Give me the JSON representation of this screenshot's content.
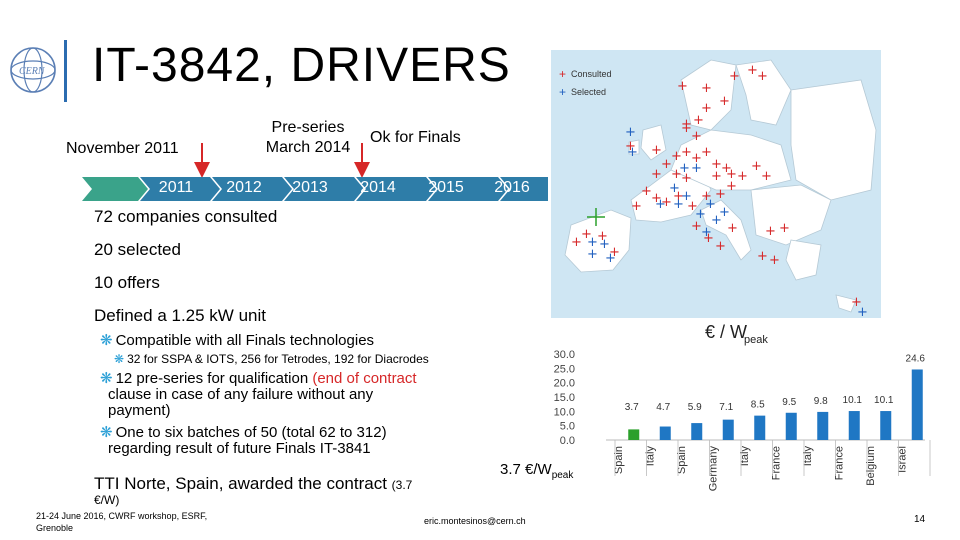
{
  "title": "IT-3842, DRIVERS",
  "timeline": {
    "milestone_left": "November 2011",
    "milestone_mid_line1": "Pre-series",
    "milestone_mid_line2": "March 2014",
    "milestone_right": "Ok for Finals",
    "years": [
      "2011",
      "2012",
      "2013",
      "2014",
      "2015",
      "2016"
    ],
    "band_color": "#2e7da8",
    "start_color": "#3aa38a"
  },
  "stats": {
    "consulted": "72 companies consulted",
    "selected": "20 selected",
    "offers": "10 offers",
    "unit": "Defined a 1.25 kW unit"
  },
  "bullets": {
    "b1": "Compatible with all Finals technologies",
    "b1_sub": "32 for SSPA & IOTS, 256 for Tetrodes, 192 for Diacrodes",
    "b2_a": "12 pre-series for qualification ",
    "b2_b": "(end of contract",
    "b2_line2": "clause in case of any failure without any",
    "b2_line3": "payment)",
    "b3_line1": "One to six batches of 50 (total 62 to 312)",
    "b3_line2": "regarding result of future Finals IT-3841",
    "award_main": "TTI Norte, Spain, awarded the contract ",
    "award_small": "(3.7",
    "award_line2": "€/W)"
  },
  "map": {
    "legend_consulted": "Consulted",
    "legend_selected": "Selected",
    "consulted_color": "#d62728",
    "selected_color": "#1f5fbf"
  },
  "chart_data": {
    "type": "bar",
    "title": "€ / W",
    "title_sub": "peak",
    "categories": [
      "Spain",
      "Italy",
      "Spain",
      "Germany",
      "Italy",
      "France",
      "Italy",
      "France",
      "Belgium",
      "Israel"
    ],
    "values": [
      3.7,
      4.7,
      5.9,
      7.1,
      8.5,
      9.5,
      9.8,
      10.1,
      10.1,
      24.6
    ],
    "value_labels": [
      "3.7",
      "4.7",
      "5.9",
      "7.1",
      "8.5",
      "9.5",
      "9.8",
      "10.1",
      "10.1",
      "24.6"
    ],
    "ylim": [
      0,
      30
    ],
    "yticks": [
      "30.0",
      "25.0",
      "20.0",
      "15.0",
      "10.0",
      "5.0",
      "0.0"
    ],
    "highlight_index": 0,
    "highlight_color": "#2ca02c",
    "bar_color": "#1f77c4",
    "legend_label": "3.7 €/W",
    "legend_sub": "peak"
  },
  "footer": {
    "left_line1": "21-24 June 2016, CWRF workshop, ESRF,",
    "left_line2": "Grenoble",
    "email": "eric.montesinos@cern.ch",
    "page": "14"
  }
}
